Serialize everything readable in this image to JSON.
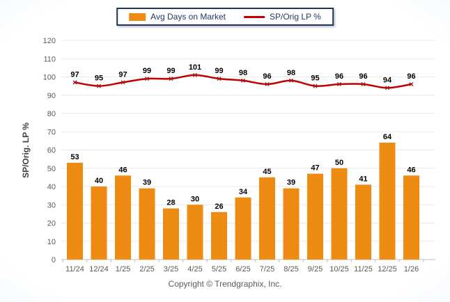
{
  "legend": {
    "items": [
      {
        "label": "Avg Days on Market",
        "type": "bar",
        "color": "#ED8B12"
      },
      {
        "label": "SP/Orig LP %",
        "type": "line",
        "color": "#C00000"
      }
    ]
  },
  "y_axis": {
    "title": "SP/Orig. LP %"
  },
  "chart_data": {
    "type": "combo",
    "categories": [
      "11/24",
      "12/24",
      "1/25",
      "2/25",
      "3/25",
      "4/25",
      "5/25",
      "6/25",
      "7/25",
      "8/25",
      "9/25",
      "10/25",
      "11/25",
      "12/25",
      "1/26"
    ],
    "series": [
      {
        "name": "Avg Days on Market",
        "type": "bar",
        "color": "#ED8B12",
        "values": [
          53,
          40,
          46,
          39,
          28,
          30,
          26,
          34,
          45,
          39,
          47,
          50,
          41,
          64,
          46
        ]
      },
      {
        "name": "SP/Orig LP %",
        "type": "line",
        "color": "#C00000",
        "marker_color": "#9C1C1C",
        "values": [
          97,
          95,
          97,
          99,
          99,
          101,
          99,
          98,
          96,
          98,
          95,
          96,
          96,
          94,
          96
        ]
      }
    ],
    "ylabel": "SP/Orig. LP %",
    "ylim": [
      0,
      120
    ],
    "ytick_step": 10,
    "grid": true,
    "data_labels": true,
    "legend_position": "top-center"
  },
  "footer": {
    "copyright": "Copyright © Trendgraphix, Inc."
  }
}
